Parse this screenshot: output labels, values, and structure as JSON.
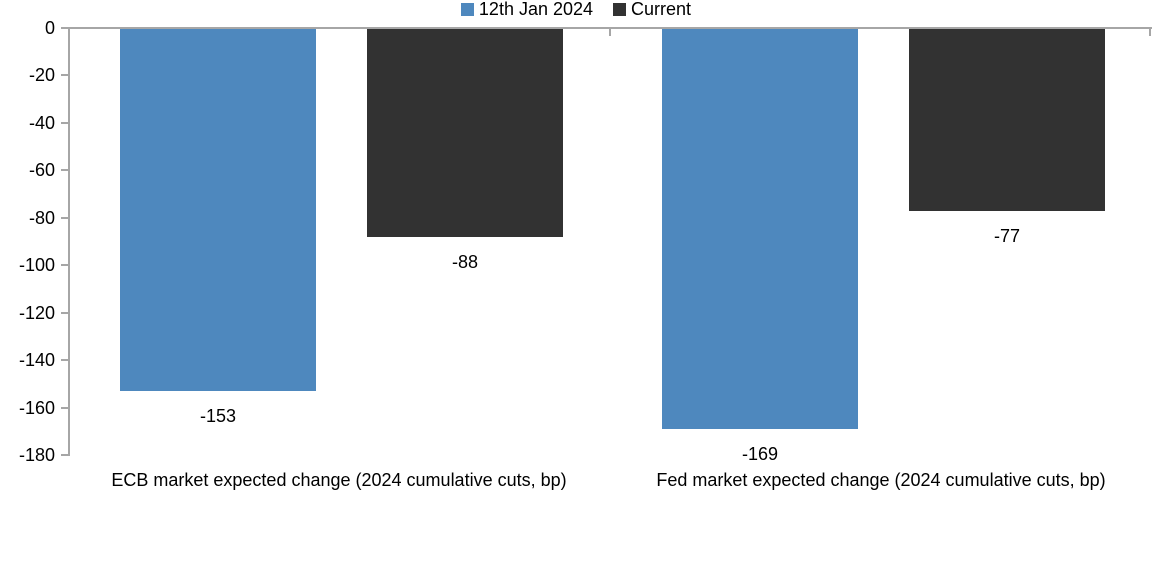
{
  "chart_data": {
    "type": "bar",
    "title": "",
    "orientation": "vertical",
    "categories": [
      "ECB market expected change (2024 cumulative cuts, bp)",
      "Fed market expected change (2024 cumulative cuts, bp)"
    ],
    "series": [
      {
        "name": "12th Jan 2024",
        "color": "#4E88BE",
        "values": [
          -153,
          -169
        ]
      },
      {
        "name": "Current",
        "color": "#323232",
        "values": [
          -88,
          -77
        ]
      }
    ],
    "data_labels": {
      "shown": true,
      "values": [
        [
          "-153",
          "-169"
        ],
        [
          "-88",
          "-77"
        ]
      ]
    },
    "y_axis": {
      "min": -180,
      "max": 0,
      "tick_step": 20,
      "tick_labels": [
        "0",
        "-20",
        "-40",
        "-60",
        "-80",
        "-100",
        "-120",
        "-140",
        "-160",
        "-180"
      ]
    },
    "grid": false,
    "legend_position": "bottom",
    "axis_color": "#A6A6A6",
    "text_color": "#000000",
    "background_color": "#FFFFFF"
  }
}
